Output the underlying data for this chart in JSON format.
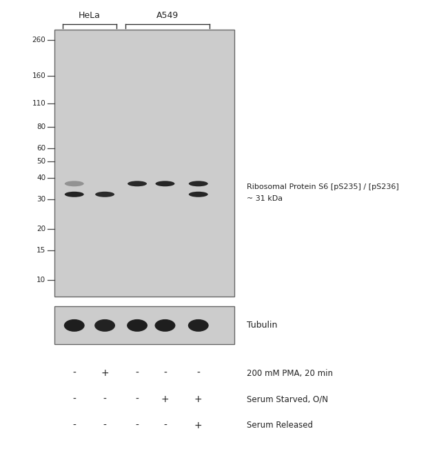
{
  "white": "#ffffff",
  "panel_bg": "#cccccc",
  "panel_bg_light": "#d4d4d4",
  "font_color": "#222222",
  "band_color_dark": "#1a1a1a",
  "band_color_mid": "#333333",
  "band_color_light": "#555555",
  "marker_labels": [
    "260",
    "160",
    "110",
    "80",
    "60",
    "50",
    "40",
    "30",
    "20",
    "15",
    "10"
  ],
  "marker_vals": [
    260,
    160,
    110,
    80,
    60,
    50,
    40,
    30,
    20,
    15,
    10
  ],
  "annotation_text_line1": "Ribosomal Protein S6 [pS235] / [pS236]",
  "annotation_text_line2": "~ 31 kDa",
  "tubulin_label": "Tubulin",
  "treatment_labels": [
    "200 mM PMA, 20 min",
    "Serum Starved, O/N",
    "Serum Released"
  ],
  "treatment_signs": [
    [
      "-",
      "+",
      "-",
      "-",
      "-"
    ],
    [
      "-",
      "-",
      "-",
      "+",
      "+"
    ],
    [
      "-",
      "-",
      "-",
      "-",
      "+"
    ]
  ],
  "tick_color": "#444444"
}
